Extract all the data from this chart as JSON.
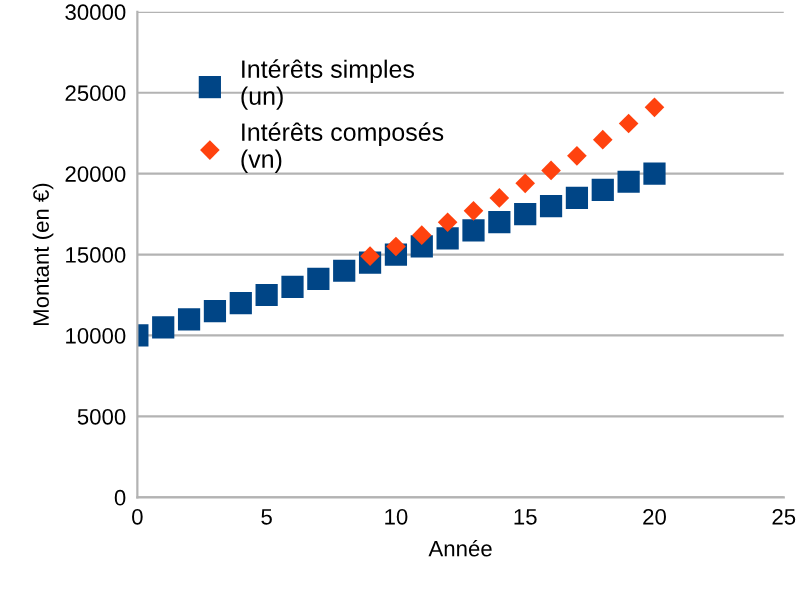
{
  "chart_data": {
    "type": "scatter",
    "xlabel": "Année",
    "ylabel": "Montant (en €)",
    "x": [
      0,
      1,
      2,
      3,
      4,
      5,
      6,
      7,
      8,
      9,
      10,
      11,
      12,
      13,
      14,
      15,
      16,
      17,
      18,
      19,
      20
    ],
    "series": [
      {
        "name": "Intérêts simples\n(un)",
        "color": "#004586",
        "marker": "square",
        "values": [
          10000,
          10500,
          11000,
          11500,
          12000,
          12500,
          13000,
          13500,
          14000,
          14500,
          15000,
          15500,
          16000,
          16500,
          17000,
          17500,
          18000,
          18500,
          19000,
          19500,
          20000
        ]
      },
      {
        "name": "Intérêts composés\n(vn)",
        "color": "#ff420e",
        "marker": "diamond",
        "values": [
          null,
          null,
          null,
          null,
          null,
          null,
          null,
          null,
          null,
          14900,
          15500,
          16200,
          17000,
          17700,
          18500,
          19400,
          20200,
          21100,
          22100,
          23100,
          24100
        ]
      }
    ],
    "xlim": [
      0,
      25
    ],
    "xticks": [
      0,
      5,
      10,
      15,
      20,
      25
    ],
    "ylim": [
      0,
      30000
    ],
    "yticks": [
      0,
      5000,
      10000,
      15000,
      20000,
      25000,
      30000
    ],
    "grid": "y",
    "legend": "top left"
  }
}
